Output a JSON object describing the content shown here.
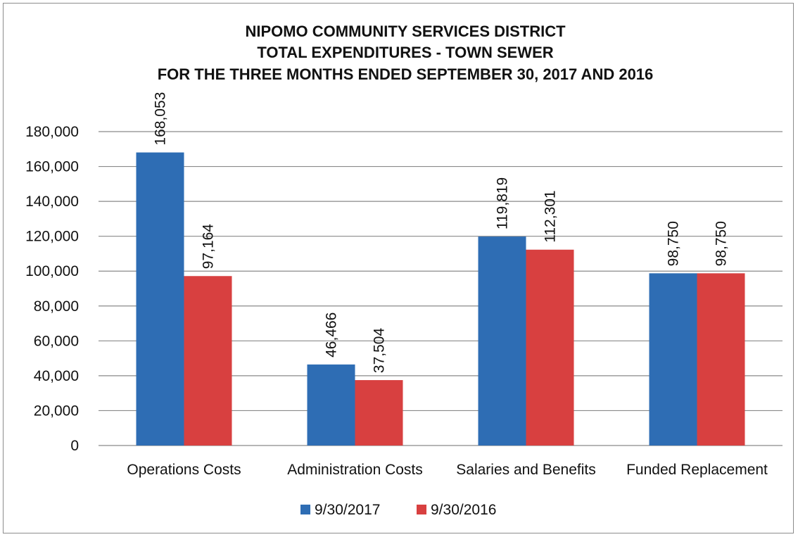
{
  "chart_data": {
    "type": "bar",
    "title_lines": [
      "NIPOMO COMMUNITY SERVICES DISTRICT",
      "TOTAL EXPENDITURES - TOWN SEWER",
      "FOR THE THREE MONTHS ENDED SEPTEMBER 30, 2017 AND 2016"
    ],
    "categories": [
      "Operations Costs",
      "Administration Costs",
      "Salaries and Benefits",
      "Funded Replacement"
    ],
    "series": [
      {
        "name": "9/30/2017",
        "color": "#2e6db4",
        "values": [
          168053,
          46466,
          119819,
          98750
        ],
        "labels": [
          "168,053",
          "46,466",
          "119,819",
          "98,750"
        ]
      },
      {
        "name": "9/30/2016",
        "color": "#d84040",
        "values": [
          97164,
          37504,
          112301,
          98750
        ],
        "labels": [
          "97,164",
          "37,504",
          "112,301",
          "98,750"
        ]
      }
    ],
    "ylim": [
      0,
      180000
    ],
    "y_ticks": [
      0,
      20000,
      40000,
      60000,
      80000,
      100000,
      120000,
      140000,
      160000,
      180000
    ],
    "y_tick_labels": [
      "0",
      "20,000",
      "40,000",
      "60,000",
      "80,000",
      "100,000",
      "120,000",
      "140,000",
      "160,000",
      "180,000"
    ],
    "grid": true,
    "legend_position": "bottom",
    "data_label_rotation": "vertical"
  }
}
